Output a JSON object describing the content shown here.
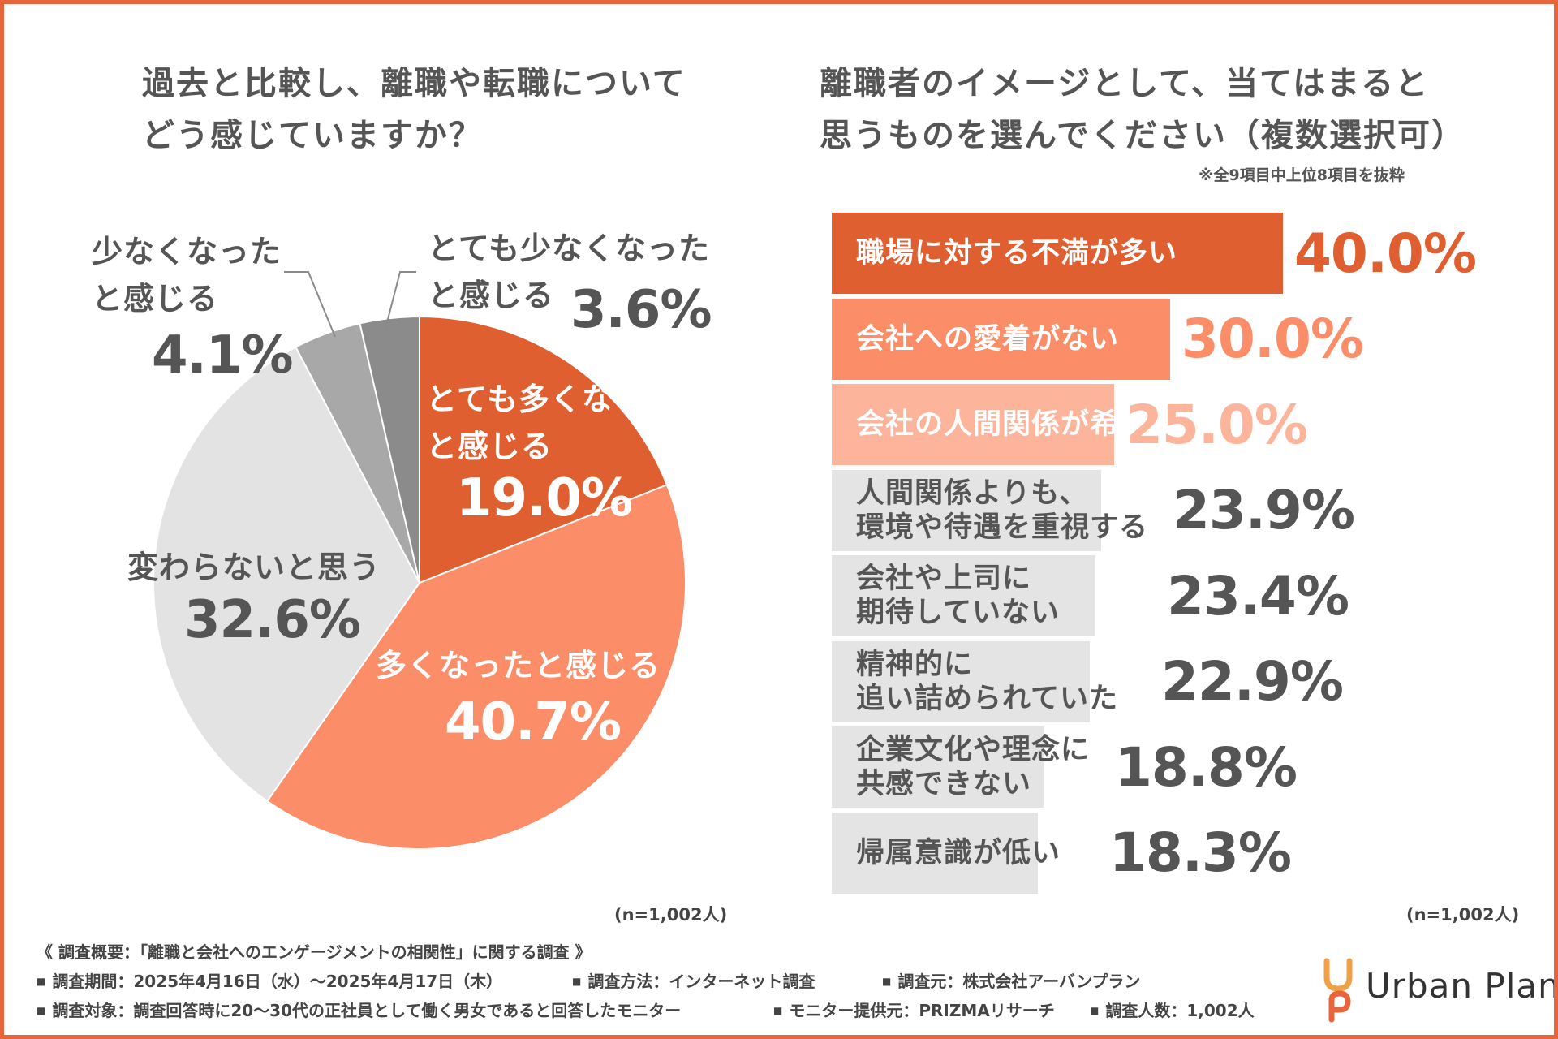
{
  "left_title": [
    "過去と比較し、離職や転職について",
    "どう感じていますか？"
  ],
  "right_title": [
    "離職者のイメージとして、当てはまると",
    "思うものを選んでください（複数選択可）"
  ],
  "right_note": "※全9項目中上位8項目を抜粋",
  "n_label_left": "(n=1,002人)",
  "n_label_right": "(n=1,002人)",
  "colors": {
    "accent": "#e8643a",
    "orange_dark": "#e05f31",
    "orange_mid": "#fb8d68",
    "orange_light": "#fcb49b",
    "gray_bar": "#e4e4e4",
    "pie_gray_light": "#e3e3e3",
    "pie_gray_mid": "#a8a8a8",
    "pie_gray_dark": "#8b8b8b",
    "text_gray": "#555555"
  },
  "chart_data": [
    {
      "type": "pie",
      "title": "過去と比較し、離職や転職についてどう感じていますか？",
      "start": "12 o'clock, clockwise",
      "slices": [
        {
          "label": "とても多くなったと感じる",
          "value": 19.0,
          "pct": "19.0%",
          "color": "#e05f31"
        },
        {
          "label": "多くなったと感じる",
          "value": 40.7,
          "pct": "40.7%",
          "color": "#fb8d68"
        },
        {
          "label": "変わらないと思う",
          "value": 32.6,
          "pct": "32.6%",
          "color": "#e3e3e3"
        },
        {
          "label": "少なくなったと感じる",
          "value": 4.1,
          "pct": "4.1%",
          "color": "#a8a8a8"
        },
        {
          "label": "とても少なくなったと感じる",
          "value": 3.6,
          "pct": "3.6%",
          "color": "#8b8b8b"
        }
      ],
      "labels": {
        "s0": [
          "とても多くなった",
          "と感じる"
        ],
        "s1": [
          "多くなったと感じる"
        ],
        "s2": [
          "変わらないと思う"
        ],
        "s3": [
          "少なくなった",
          "と感じる"
        ],
        "s4": [
          "とても少なくなった",
          "と感じる"
        ]
      },
      "note": "(n=1,002人)"
    },
    {
      "type": "bar",
      "orientation": "horizontal",
      "title": "離職者のイメージとして、当てはまると思うものを選んでください（複数選択可）",
      "categories": [
        "職場に対する不満が多い",
        "会社への愛着がない",
        "会社の人間関係が希薄",
        "人間関係よりも、\n環境や待遇を重視する",
        "会社や上司に\n期待していない",
        "精神的に\n追い詰められていた",
        "企業文化や理念に\n共感できない",
        "帰属意識が低い"
      ],
      "values": [
        40.0,
        30.0,
        25.0,
        23.9,
        23.4,
        22.9,
        18.8,
        18.3
      ],
      "value_labels": [
        "40.0%",
        "30.0%",
        "25.0%",
        "23.9%",
        "23.4%",
        "22.9%",
        "18.8%",
        "18.3%"
      ],
      "bar_colors": [
        "#e05f31",
        "#fb8d68",
        "#fcb49b",
        "#e4e4e4",
        "#e4e4e4",
        "#e4e4e4",
        "#e4e4e4",
        "#e4e4e4"
      ],
      "label_colors": [
        "#ffffff",
        "#ffffff",
        "#ffffff",
        "#555555",
        "#555555",
        "#555555",
        "#555555",
        "#555555"
      ],
      "value_colors": [
        "#e05f31",
        "#fb8d68",
        "#fcb49b",
        "#555555",
        "#555555",
        "#555555",
        "#555555",
        "#555555"
      ],
      "xlim": [
        0,
        40
      ],
      "note": "(n=1,002人)"
    }
  ],
  "footer": {
    "heading": "《 調査概要：「離職と会社へのエンゲージメントの相関性」に関する調査 》",
    "period": "調査期間：2025年4月16日（水）～2025年4月17日（木）",
    "method": "調査方法：インターネット調査",
    "source": "調査元：株式会社アーバンプラン",
    "target": "調査対象：調査回答時に20〜30代の正社員として働く男女であると回答したモニター",
    "provider": "モニター提供元：PRIZMAリサーチ",
    "count": "調査人数：1,002人"
  },
  "logo": {
    "text": "Urban Plan",
    "name": "urban-plan-logo-icon"
  }
}
